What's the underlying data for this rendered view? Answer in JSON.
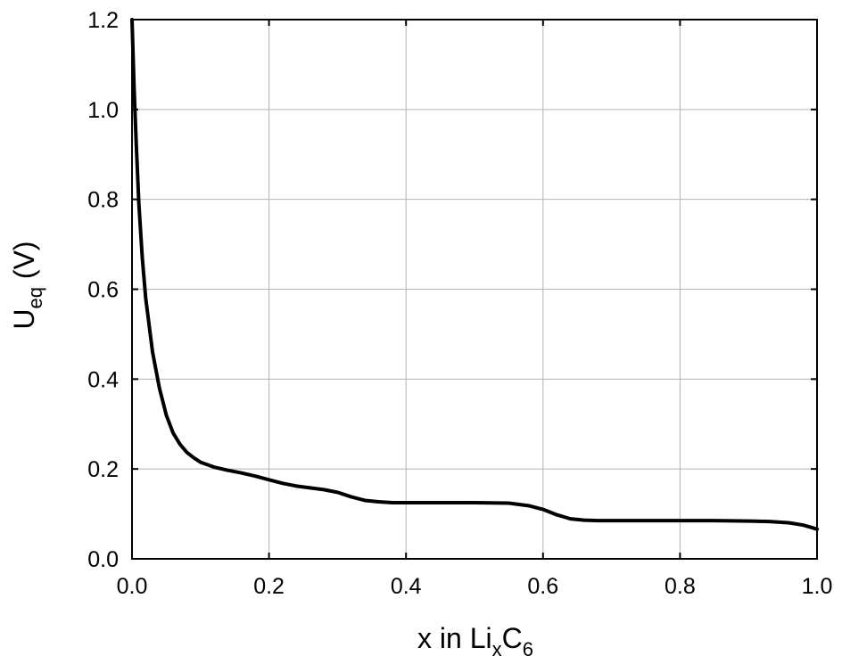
{
  "chart_data": {
    "type": "line",
    "title": "",
    "xlabel": "x in Li",
    "xlabel_sub1": "x",
    "xlabel_mid": "C",
    "xlabel_sub2": "6",
    "ylabel": "U",
    "ylabel_sub": "eq",
    "ylabel_unit": " (V)",
    "xlim": [
      0.0,
      1.0
    ],
    "ylim": [
      0.0,
      1.2
    ],
    "xticks": [
      0.0,
      0.2,
      0.4,
      0.6,
      0.8,
      1.0
    ],
    "xtick_labels": [
      "0.0",
      "0.2",
      "0.4",
      "0.6",
      "0.8",
      "1.0"
    ],
    "yticks": [
      0.0,
      0.2,
      0.4,
      0.6,
      0.8,
      1.0,
      1.2
    ],
    "ytick_labels": [
      "0.0",
      "0.2",
      "0.4",
      "0.6",
      "0.8",
      "1.0",
      "1.2"
    ],
    "grid": true,
    "legend": "none",
    "line_color": "#000000",
    "grid_color": "#b3b3b3",
    "series": [
      {
        "x": [
          0.0,
          0.003,
          0.006,
          0.01,
          0.015,
          0.02,
          0.03,
          0.04,
          0.05,
          0.06,
          0.07,
          0.08,
          0.09,
          0.1,
          0.12,
          0.14,
          0.16,
          0.18,
          0.2,
          0.22,
          0.24,
          0.26,
          0.28,
          0.3,
          0.32,
          0.34,
          0.36,
          0.38,
          0.4,
          0.45,
          0.5,
          0.55,
          0.58,
          0.6,
          0.62,
          0.64,
          0.66,
          0.68,
          0.7,
          0.75,
          0.8,
          0.85,
          0.9,
          0.93,
          0.96,
          0.98,
          1.0
        ],
        "y": [
          1.2,
          1.05,
          0.93,
          0.79,
          0.67,
          0.58,
          0.46,
          0.38,
          0.32,
          0.28,
          0.255,
          0.237,
          0.225,
          0.215,
          0.204,
          0.197,
          0.191,
          0.184,
          0.176,
          0.168,
          0.162,
          0.158,
          0.154,
          0.148,
          0.138,
          0.13,
          0.127,
          0.125,
          0.125,
          0.125,
          0.125,
          0.124,
          0.118,
          0.11,
          0.098,
          0.089,
          0.086,
          0.085,
          0.085,
          0.085,
          0.085,
          0.085,
          0.084,
          0.083,
          0.08,
          0.075,
          0.066
        ]
      }
    ]
  }
}
